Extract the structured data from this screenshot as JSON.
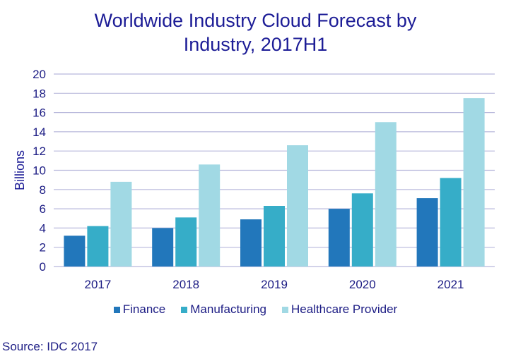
{
  "chart_data": {
    "type": "bar",
    "title": "Worldwide Industry Cloud Forecast by Industry, 2017H1",
    "title_lines": [
      "Worldwide Industry Cloud Forecast by",
      "Industry, 2017H1"
    ],
    "ylabel": "Billions",
    "xlabel": "",
    "ylim": [
      0,
      20
    ],
    "yticks": [
      0,
      2,
      4,
      6,
      8,
      10,
      12,
      14,
      16,
      18,
      20
    ],
    "grid": true,
    "legend_placement": "bottom",
    "categories": [
      "2017",
      "2018",
      "2019",
      "2020",
      "2021"
    ],
    "series": [
      {
        "name": "Finance",
        "color": "#2277BB",
        "values": [
          3.2,
          4.0,
          4.9,
          6.0,
          7.1
        ]
      },
      {
        "name": "Manufacturing",
        "color": "#36ADC8",
        "values": [
          4.2,
          5.1,
          6.3,
          7.6,
          9.2
        ]
      },
      {
        "name": "Healthcare Provider",
        "color": "#A1D9E4",
        "values": [
          8.8,
          10.6,
          12.6,
          15.0,
          17.5
        ]
      }
    ]
  },
  "source": "Source: IDC 2017"
}
